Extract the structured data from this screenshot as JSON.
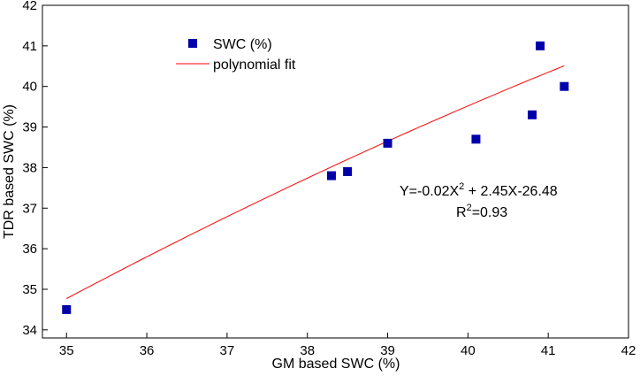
{
  "chart_data": {
    "type": "scatter",
    "title": "",
    "xlabel": "GM based SWC (%)",
    "ylabel": "TDR based SWC (%)",
    "xlim": [
      34.7,
      42
    ],
    "ylim": [
      33.8,
      42
    ],
    "xticks": [
      35,
      36,
      37,
      38,
      39,
      40,
      41,
      42
    ],
    "yticks": [
      34,
      35,
      36,
      37,
      38,
      39,
      40,
      41,
      42
    ],
    "grid": false,
    "legend_position": "top-left",
    "series": [
      {
        "name": "SWC (%)",
        "kind": "scatter",
        "marker": "square",
        "color": "#0000aa",
        "x": [
          35.0,
          38.3,
          38.5,
          39.0,
          40.1,
          40.8,
          40.9,
          41.2
        ],
        "y": [
          34.5,
          37.8,
          37.9,
          38.6,
          38.7,
          39.3,
          41.0,
          40.0
        ]
      },
      {
        "name": "polynomial fit",
        "kind": "line",
        "color": "#ff0000",
        "x_range": [
          35.0,
          41.2
        ],
        "coefficients": {
          "a": -0.02,
          "b": 2.45,
          "c": -26.48
        }
      }
    ],
    "annotations": {
      "equation_prefix": "Y=-0.02X",
      "equation_exp": "2",
      "equation_suffix": " + 2.45X-26.48",
      "r2_prefix": "R",
      "r2_exp": "2",
      "r2_suffix": "=0.93"
    }
  }
}
